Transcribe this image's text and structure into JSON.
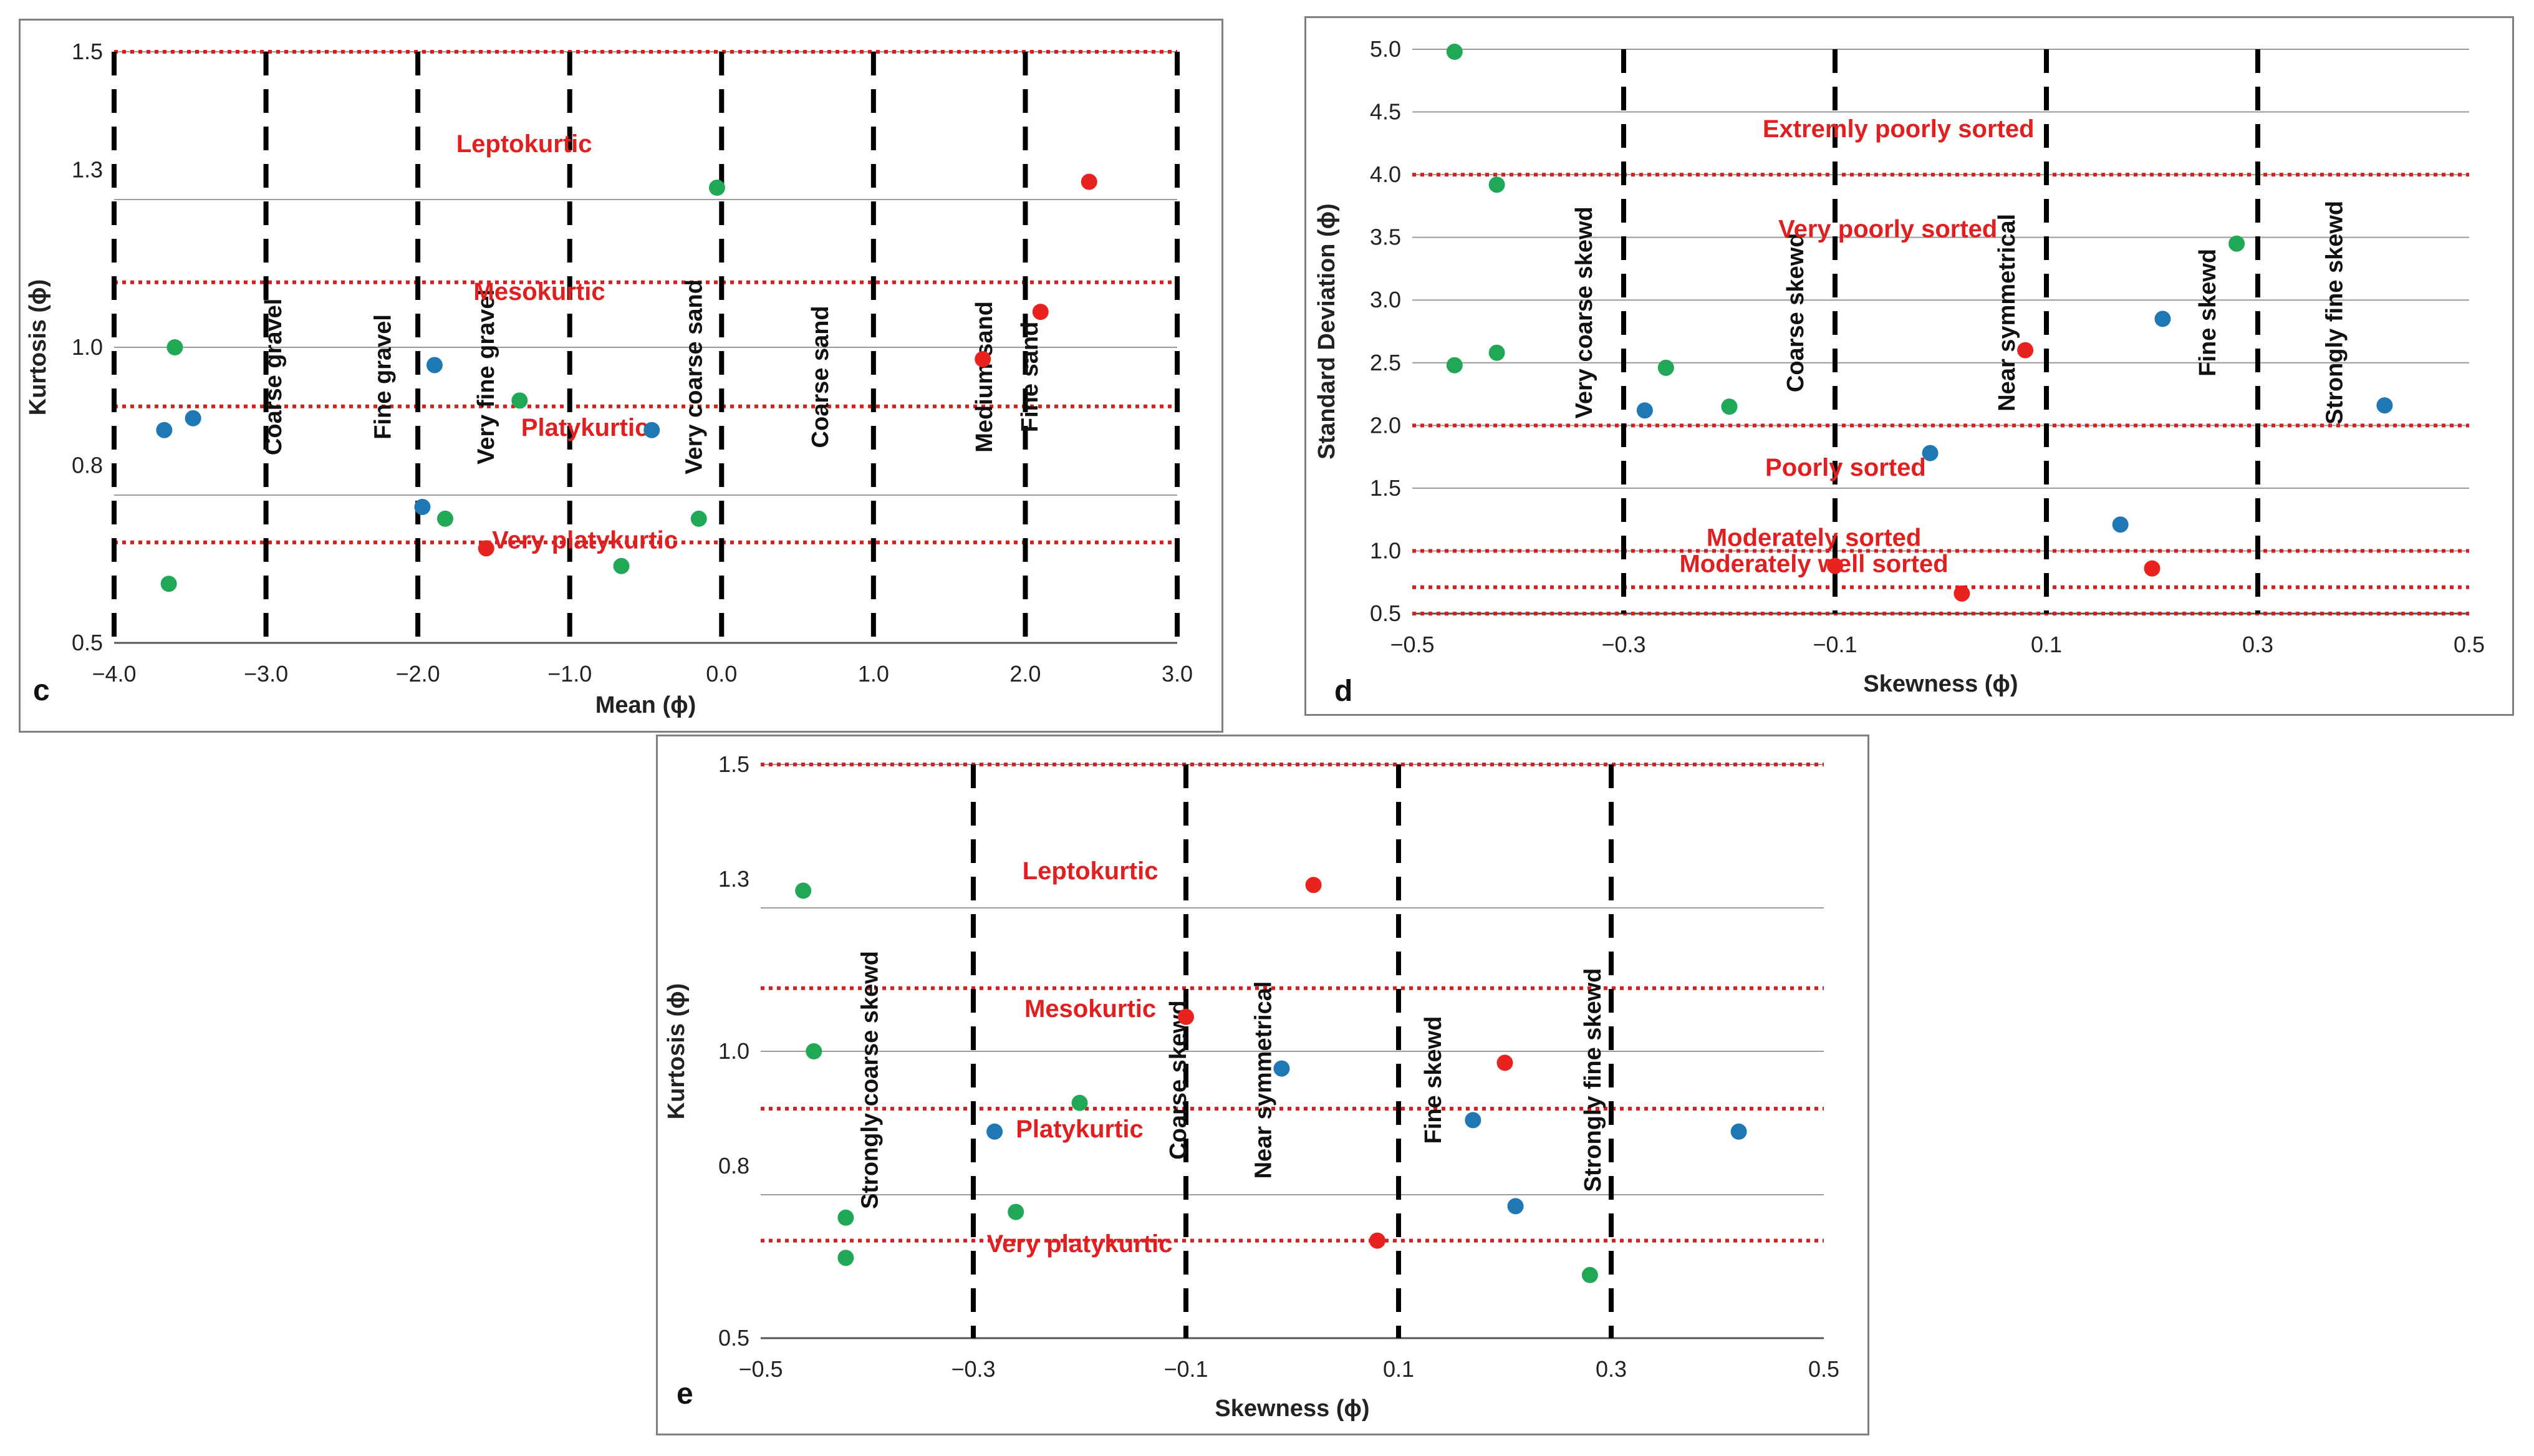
{
  "colors": {
    "blue": "#1f77b4",
    "green": "#21a857",
    "red": "#e8231f",
    "zone_text": "#e02020",
    "threshold_line": "#d42020",
    "grid": "#9a9a9a",
    "divider": "#000000"
  },
  "chart_data": [
    {
      "panel": "c",
      "type": "scatter",
      "title": "",
      "xlabel": "Mean (ϕ)",
      "ylabel": "Kurtosis (ϕ)",
      "xlim": [
        -4.0,
        3.0
      ],
      "ylim": [
        0.5,
        1.5
      ],
      "xticks": [
        -4.0,
        -3.0,
        -2.0,
        -1.0,
        0.0,
        1.0,
        2.0,
        3.0
      ],
      "xtick_labels": [
        "−4.0",
        "−3.0",
        "−2.0",
        "−1.0",
        "0.0",
        "1.0",
        "2.0",
        "3.0"
      ],
      "yticks": [
        0.5,
        0.8,
        1.0,
        1.3,
        1.5
      ],
      "ytick_labels": [
        "0.5",
        "0.8",
        "1.0",
        "1.3",
        "1.5"
      ],
      "grid_y": [
        0.75,
        1.0,
        1.25,
        1.5
      ],
      "dividers_x": [
        -4.0,
        -3.0,
        -2.0,
        -1.0,
        0.0,
        1.0,
        2.0,
        3.0
      ],
      "thresholds_y": [
        0.67,
        0.9,
        1.11,
        1.5
      ],
      "zone_labels": [
        {
          "text": "Leptokurtic",
          "x": -1.3,
          "y": 1.33
        },
        {
          "text": "Mesokurtic",
          "x": -1.2,
          "y": 1.08
        },
        {
          "text": "Platykurtic",
          "x": -0.9,
          "y": 0.85
        },
        {
          "text": "Very platykurtic",
          "x": -0.9,
          "y": 0.66
        }
      ],
      "category_labels": [
        {
          "text": "Coarse gravel",
          "x": -2.9,
          "y": 0.95
        },
        {
          "text": "Fine gravel",
          "x": -2.18,
          "y": 0.95
        },
        {
          "text": "Very fine gravel",
          "x": -1.5,
          "y": 0.95
        },
        {
          "text": "Very coarse sand",
          "x": -0.13,
          "y": 0.95
        },
        {
          "text": "Coarse sand",
          "x": 0.7,
          "y": 0.95
        },
        {
          "text": "Medium sand",
          "x": 1.78,
          "y": 0.95
        },
        {
          "text": "Fine sand",
          "x": 2.08,
          "y": 0.95
        }
      ],
      "series": [
        {
          "name": "blue",
          "color": "blue",
          "points": [
            [
              -3.67,
              0.86
            ],
            [
              -3.48,
              0.88
            ],
            [
              -1.89,
              0.97
            ],
            [
              -1.97,
              0.73
            ],
            [
              -0.46,
              0.86
            ]
          ]
        },
        {
          "name": "green",
          "color": "green",
          "points": [
            [
              -3.6,
              1.0
            ],
            [
              -3.64,
              0.6
            ],
            [
              -1.82,
              0.71
            ],
            [
              -1.33,
              0.91
            ],
            [
              -0.66,
              0.63
            ],
            [
              -0.15,
              0.71
            ],
            [
              -0.03,
              1.27
            ]
          ]
        },
        {
          "name": "red",
          "color": "red",
          "points": [
            [
              -1.55,
              0.66
            ],
            [
              1.72,
              0.98
            ],
            [
              2.1,
              1.06
            ],
            [
              2.42,
              1.28
            ]
          ]
        }
      ]
    },
    {
      "panel": "d",
      "type": "scatter",
      "title": "",
      "xlabel": "Skewness (ϕ)",
      "ylabel": "Standard Deviation (ϕ)",
      "xlim": [
        -0.5,
        0.5
      ],
      "ylim": [
        0.5,
        5.0
      ],
      "xticks": [
        -0.5,
        -0.3,
        -0.1,
        0.1,
        0.3,
        0.5
      ],
      "xtick_labels": [
        "−0.5",
        "−0.3",
        "−0.1",
        "0.1",
        "0.3",
        "0.5"
      ],
      "yticks": [
        0.5,
        1.0,
        1.5,
        2.0,
        2.5,
        3.0,
        3.5,
        4.0,
        4.5,
        5.0
      ],
      "ytick_labels": [
        "0.5",
        "1.0",
        "1.5",
        "2.0",
        "2.5",
        "3.0",
        "3.5",
        "4.0",
        "4.5",
        "5.0"
      ],
      "grid_y": [
        0.5,
        1.0,
        1.5,
        2.0,
        2.5,
        3.0,
        3.5,
        4.0,
        4.5,
        5.0
      ],
      "dividers_x": [
        -0.3,
        -0.1,
        0.1,
        0.3
      ],
      "thresholds_y": [
        0.5,
        0.71,
        1.0,
        2.0,
        4.0
      ],
      "zone_labels": [
        {
          "text": "Extremly poorly sorted",
          "x": -0.04,
          "y": 4.3
        },
        {
          "text": "Very poorly sorted",
          "x": -0.05,
          "y": 3.5
        },
        {
          "text": "Poorly sorted",
          "x": -0.09,
          "y": 1.6
        },
        {
          "text": "Moderately sorted",
          "x": -0.12,
          "y": 1.04
        },
        {
          "text": "Moderately well sorted",
          "x": -0.12,
          "y": 0.83
        }
      ],
      "category_labels": [
        {
          "text": "Very coarse skewd",
          "x": -0.33,
          "y": 2.9
        },
        {
          "text": "Coarse skewd",
          "x": -0.13,
          "y": 2.9
        },
        {
          "text": "Near symmetrical",
          "x": 0.07,
          "y": 2.9
        },
        {
          "text": "Fine skewd",
          "x": 0.26,
          "y": 2.9
        },
        {
          "text": "Strongly fine skewd",
          "x": 0.38,
          "y": 2.9
        }
      ],
      "series": [
        {
          "name": "blue",
          "color": "blue",
          "points": [
            [
              -0.28,
              2.12
            ],
            [
              -0.01,
              1.78
            ],
            [
              0.17,
              1.21
            ],
            [
              0.21,
              2.85
            ],
            [
              0.42,
              2.16
            ]
          ]
        },
        {
          "name": "green",
          "color": "green",
          "points": [
            [
              -0.46,
              4.98
            ],
            [
              -0.42,
              3.92
            ],
            [
              -0.42,
              2.58
            ],
            [
              -0.46,
              2.48
            ],
            [
              -0.26,
              2.46
            ],
            [
              -0.2,
              2.15
            ],
            [
              0.28,
              3.45
            ]
          ]
        },
        {
          "name": "red",
          "color": "red",
          "points": [
            [
              -0.1,
              0.88
            ],
            [
              0.02,
              0.66
            ],
            [
              0.08,
              2.6
            ],
            [
              0.2,
              0.86
            ]
          ]
        }
      ]
    },
    {
      "panel": "e",
      "type": "scatter",
      "title": "",
      "xlabel": "Skewness (ϕ)",
      "ylabel": "Kurtosis (ϕ)",
      "xlim": [
        -0.5,
        0.5
      ],
      "ylim": [
        0.5,
        1.5
      ],
      "xticks": [
        -0.5,
        -0.3,
        -0.1,
        0.1,
        0.3,
        0.5
      ],
      "xtick_labels": [
        "−0.5",
        "−0.3",
        "−0.1",
        "0.1",
        "0.3",
        "0.5"
      ],
      "yticks": [
        0.5,
        0.8,
        1.0,
        1.3,
        1.5
      ],
      "ytick_labels": [
        "0.5",
        "0.8",
        "1.0",
        "1.3",
        "1.5"
      ],
      "grid_y": [
        0.75,
        1.0,
        1.25,
        1.5
      ],
      "dividers_x": [
        -0.3,
        -0.1,
        0.1,
        0.3
      ],
      "thresholds_y": [
        0.67,
        0.9,
        1.11,
        1.5
      ],
      "zone_labels": [
        {
          "text": "Leptokurtic",
          "x": -0.19,
          "y": 1.3
        },
        {
          "text": "Mesokurtic",
          "x": -0.19,
          "y": 1.06
        },
        {
          "text": "Platykurtic",
          "x": -0.2,
          "y": 0.85
        },
        {
          "text": "Very platykurtic",
          "x": -0.2,
          "y": 0.65
        }
      ],
      "category_labels": [
        {
          "text": "Strongly coarse skewd",
          "x": -0.39,
          "y": 0.95
        },
        {
          "text": "Coarse skewd",
          "x": -0.1,
          "y": 0.95
        },
        {
          "text": "Near symmetrical",
          "x": -0.02,
          "y": 0.95
        },
        {
          "text": "Fine skewd",
          "x": 0.14,
          "y": 0.95
        },
        {
          "text": "Strongly fine skewd",
          "x": 0.29,
          "y": 0.95
        }
      ],
      "series": [
        {
          "name": "blue",
          "color": "blue",
          "points": [
            [
              -0.28,
              0.86
            ],
            [
              -0.01,
              0.97
            ],
            [
              0.17,
              0.88
            ],
            [
              0.21,
              0.73
            ],
            [
              0.42,
              0.86
            ]
          ]
        },
        {
          "name": "green",
          "color": "green",
          "points": [
            [
              -0.46,
              1.28
            ],
            [
              -0.45,
              1.0
            ],
            [
              -0.42,
              0.71
            ],
            [
              -0.42,
              0.64
            ],
            [
              -0.26,
              0.72
            ],
            [
              -0.2,
              0.91
            ],
            [
              0.28,
              0.61
            ]
          ]
        },
        {
          "name": "red",
          "color": "red",
          "points": [
            [
              -0.1,
              1.06
            ],
            [
              0.02,
              1.29
            ],
            [
              0.08,
              0.67
            ],
            [
              0.2,
              0.98
            ]
          ]
        }
      ]
    }
  ]
}
